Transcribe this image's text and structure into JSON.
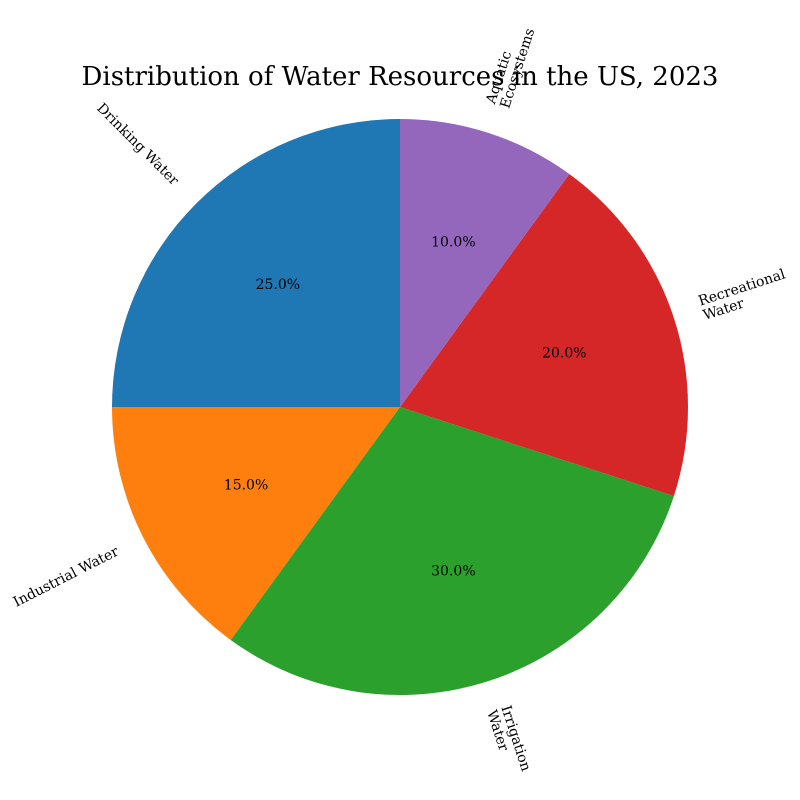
{
  "chart_data": {
    "type": "pie",
    "title": "Distribution of Water Resources in the US, 2023",
    "categories": [
      "Drinking Water",
      "Industrial Water",
      "Irrigation\nWater",
      "Recreational\nWater",
      "Aquatic\nEcosystems"
    ],
    "values": [
      25,
      15,
      30,
      20,
      10
    ],
    "value_labels": [
      "25.0%",
      "15.0%",
      "30.0%",
      "20.0%",
      "10.0%"
    ],
    "colors": [
      "#1f77b4",
      "#ff7f0e",
      "#2ca02c",
      "#d62728",
      "#9467bd"
    ],
    "start_angle_deg": 90,
    "direction": "counterclockwise"
  }
}
